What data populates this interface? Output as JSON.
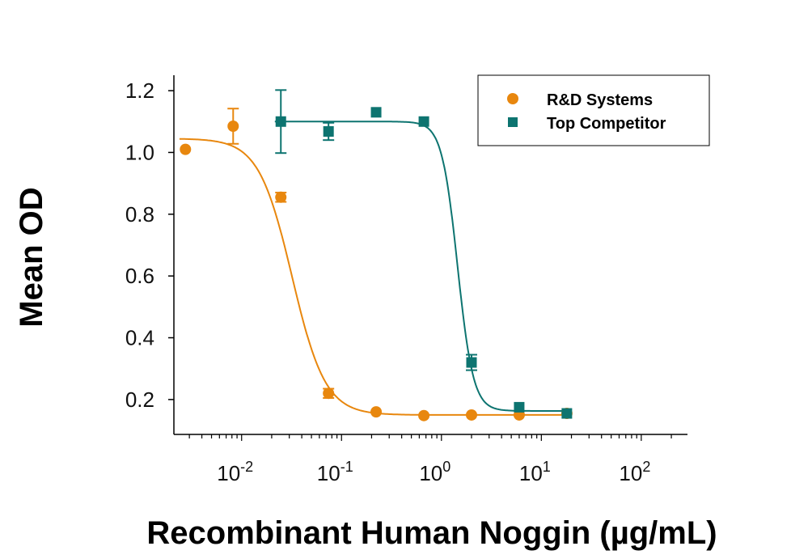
{
  "chart_data": {
    "type": "scatter",
    "xlabel": "Recombinant Human Noggin (µg/mL)",
    "ylabel": "Mean OD",
    "xscale": "log",
    "xlim": [
      0.0021,
      290
    ],
    "ylim": [
      0.087,
      1.25
    ],
    "yticks": [
      "0.2",
      "0.4",
      "0.6",
      "0.8",
      "1.0",
      "1.2"
    ],
    "xticks": [
      {
        "base": "10",
        "exp": "-2"
      },
      {
        "base": "10",
        "exp": "-1"
      },
      {
        "base": "10",
        "exp": "0"
      },
      {
        "base": "10",
        "exp": "1"
      },
      {
        "base": "10",
        "exp": "2"
      }
    ],
    "legend_position": "top-right",
    "series": [
      {
        "name": "R&D Systems",
        "color": "#E8870E",
        "marker": "circle",
        "x": [
          0.00274,
          0.00823,
          0.0247,
          0.0741,
          0.222,
          0.667,
          2.0,
          6.0,
          18.0
        ],
        "y": [
          1.01,
          1.085,
          0.855,
          0.22,
          0.16,
          0.148,
          0.15,
          0.15,
          0.155
        ],
        "err": [
          0,
          0.057,
          0.015,
          0.015,
          0,
          0,
          0,
          0,
          0
        ],
        "fit": {
          "top": 1.045,
          "bottom": 0.15,
          "ec50": 0.032,
          "hill": 2.6
        }
      },
      {
        "name": "Top Competitor",
        "color": "#0D7470",
        "marker": "square",
        "x": [
          0.0247,
          0.0741,
          0.222,
          0.667,
          2.0,
          6.0,
          18.0
        ],
        "y": [
          1.1,
          1.068,
          1.13,
          1.1,
          0.32,
          0.175,
          0.155
        ],
        "err": [
          0.102,
          0.028,
          0,
          0,
          0.025,
          0,
          0
        ],
        "fit": {
          "top": 1.1,
          "bottom": 0.163,
          "ec50": 1.45,
          "hill": 5.5
        }
      }
    ]
  }
}
